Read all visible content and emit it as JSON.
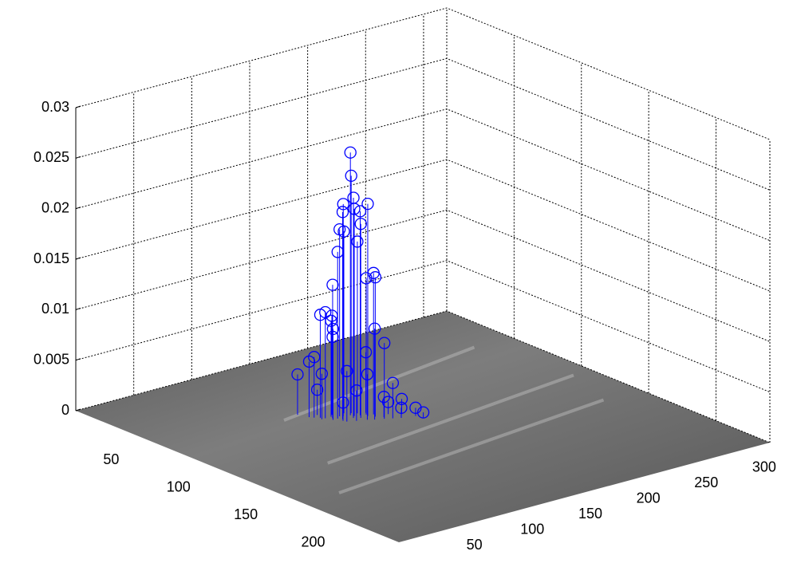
{
  "chart_data": {
    "type": "stem3",
    "x": [
      137,
      140,
      135,
      132,
      145,
      128,
      138,
      142,
      130,
      136,
      139,
      126,
      143,
      148,
      150,
      146,
      124,
      120,
      118,
      122,
      125,
      128,
      144,
      150,
      115,
      113,
      117,
      110,
      120,
      126,
      155,
      152,
      158,
      165,
      170,
      172,
      160,
      133,
      140,
      148,
      131,
      127
    ],
    "y": [
      86,
      84,
      90,
      85,
      92,
      88,
      88,
      89,
      84,
      82,
      92,
      86,
      86,
      95,
      92,
      90,
      84,
      82,
      80,
      86,
      82,
      80,
      98,
      100,
      78,
      76,
      82,
      70,
      76,
      90,
      102,
      98,
      96,
      100,
      106,
      110,
      104,
      94,
      96,
      88,
      78,
      92
    ],
    "z": [
      0.026,
      0.0235,
      0.0218,
      0.021,
      0.021,
      0.0205,
      0.0205,
      0.0202,
      0.0185,
      0.018,
      0.0192,
      0.0165,
      0.017,
      0.0138,
      0.014,
      0.0135,
      0.0132,
      0.0105,
      0.0102,
      0.009,
      0.0095,
      0.0098,
      0.009,
      0.0075,
      0.006,
      0.0055,
      0.0045,
      0.004,
      0.0025,
      0.0018,
      0.0035,
      0.002,
      0.0012,
      0.0015,
      0.0008,
      0.0005,
      0.001,
      0.003,
      0.0045,
      0.006,
      0.0075,
      0.005
    ],
    "color": "#0000ff",
    "xlim": [
      0,
      320
    ],
    "ylim": [
      0,
      240
    ],
    "zlim": [
      0,
      0.03
    ],
    "xticks": [
      50,
      100,
      150,
      200,
      250,
      300
    ],
    "yticks": [
      50,
      100,
      150,
      200
    ],
    "zticks": [
      0,
      0.005,
      0.01,
      0.015,
      0.02,
      0.025,
      0.03
    ],
    "grid": true
  }
}
